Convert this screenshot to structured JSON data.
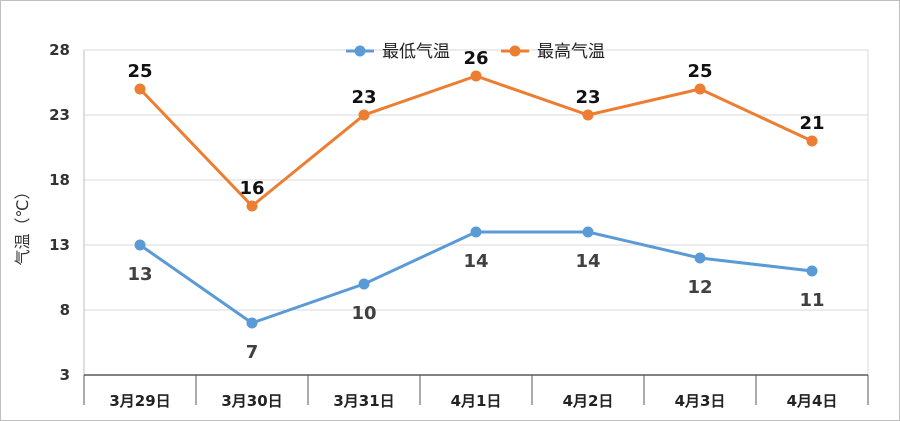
{
  "chart_data": {
    "type": "line",
    "title": "",
    "xlabel": "",
    "ylabel": "气温（℃）",
    "ylim": [
      3,
      28
    ],
    "yticks": [
      3,
      8,
      13,
      18,
      23,
      28
    ],
    "grid": true,
    "legend_position": "top",
    "categories": [
      "3月29日",
      "3月30日",
      "3月31日",
      "4月1日",
      "4月2日",
      "4月3日",
      "4月4日"
    ],
    "series": [
      {
        "name": "最低气温",
        "color": "#5b9bd5",
        "values": [
          13,
          7,
          10,
          14,
          14,
          12,
          11
        ],
        "label_position": "below"
      },
      {
        "name": "最高气温",
        "color": "#ed7d31",
        "values": [
          25,
          16,
          23,
          26,
          23,
          25,
          21
        ],
        "label_position": "above"
      }
    ]
  }
}
